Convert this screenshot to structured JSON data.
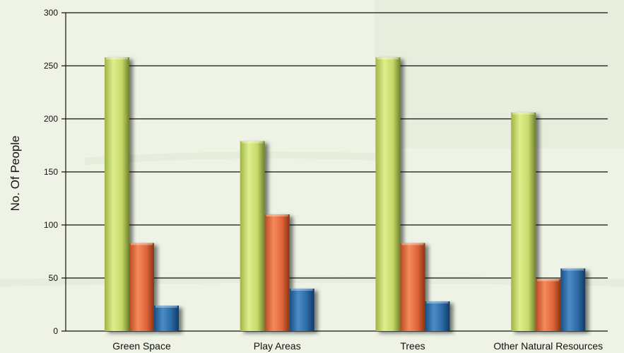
{
  "chart_data": {
    "type": "bar",
    "title": "",
    "xlabel": "",
    "ylabel": "No. Of People",
    "ylim": [
      0,
      300
    ],
    "yticks": [
      0,
      50,
      100,
      150,
      200,
      250,
      300
    ],
    "grid": true,
    "legend": "none",
    "categories": [
      "Green Space",
      "Play Areas",
      "Trees",
      "Other Natural Resources"
    ],
    "series": [
      {
        "color": "#c5d96a",
        "values": [
          258,
          179,
          258,
          206
        ]
      },
      {
        "color": "#e0643a",
        "values": [
          83,
          110,
          83,
          49
        ]
      },
      {
        "color": "#2a6aa6",
        "values": [
          24,
          40,
          28,
          59
        ]
      }
    ]
  }
}
